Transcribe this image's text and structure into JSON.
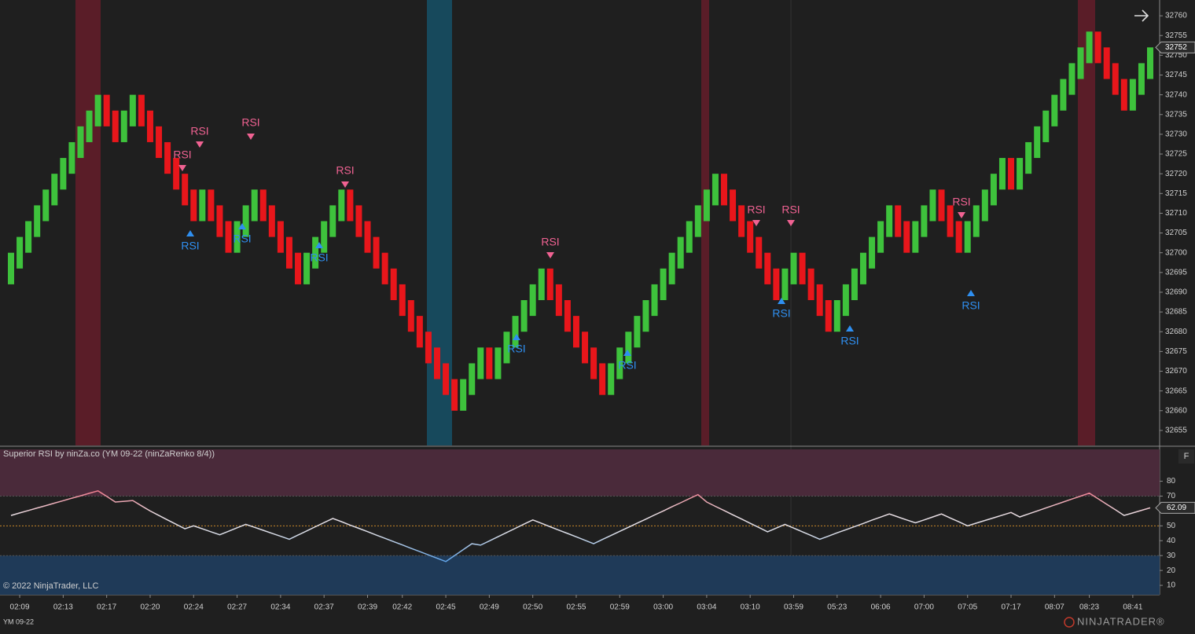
{
  "header": {
    "indicator_title": "Superior RSI by ninZa.co (YM 09-22 (ninZaRenko 8/4))",
    "copyright": "© 2022 NinjaTrader, LLC",
    "instrument": "YM 09-22",
    "logo": "NINJATRADER®",
    "panel_button": "F"
  },
  "chart_data": [
    {
      "type": "candlestick",
      "categories": [
        null,
        "02:09",
        null,
        null,
        null,
        null,
        "02:13",
        null,
        null,
        null,
        null,
        "02:17",
        null,
        null,
        null,
        null,
        "02:20",
        null,
        null,
        null,
        null,
        "02:24",
        null,
        null,
        null,
        null,
        "02:27",
        null,
        null,
        null,
        null,
        "02:34",
        null,
        null,
        null,
        null,
        "02:37",
        null,
        null,
        null,
        null,
        "02:39",
        null,
        null,
        null,
        "02:42",
        null,
        null,
        null,
        null,
        "02:45",
        null,
        null,
        null,
        null,
        "02:49",
        null,
        null,
        null,
        null,
        "02:50",
        null,
        null,
        null,
        null,
        "02:55",
        null,
        null,
        null,
        null,
        "02:59",
        null,
        null,
        null,
        null,
        "03:00",
        null,
        null,
        null,
        null,
        "03:04",
        null,
        null,
        null,
        null,
        "03:10",
        null,
        null,
        null,
        null,
        "03:59",
        null,
        null,
        null,
        null,
        "05:23",
        null,
        null,
        null,
        null,
        "06:06",
        null,
        null,
        null,
        null,
        "07:00",
        null,
        null,
        null,
        null,
        "07:05",
        null,
        null,
        null,
        null,
        "07:17",
        null,
        null,
        null,
        null,
        "08:07",
        null,
        null,
        null,
        "08:23",
        null,
        null,
        null,
        null,
        "08:41",
        null,
        null
      ],
      "open": [
        32692,
        32696,
        32700,
        32704,
        32708,
        32712,
        32716,
        32720,
        32724,
        32728,
        32732,
        32740,
        32736,
        32728,
        32732,
        32740,
        32736,
        32732,
        32728,
        32724,
        32720,
        32716,
        32708,
        32716,
        32712,
        32708,
        32700,
        32704,
        32708,
        32716,
        32712,
        32708,
        32704,
        32700,
        32692,
        32696,
        32700,
        32704,
        32708,
        32716,
        32712,
        32708,
        32704,
        32700,
        32696,
        32692,
        32688,
        32684,
        32680,
        32676,
        32672,
        32668,
        32660,
        32664,
        32668,
        32676,
        32668,
        32672,
        32676,
        32680,
        32684,
        32688,
        32696,
        32692,
        32688,
        32684,
        32680,
        32676,
        32672,
        32664,
        32668,
        32672,
        32676,
        32680,
        32684,
        32688,
        32692,
        32696,
        32700,
        32704,
        32708,
        32712,
        32720,
        32716,
        32712,
        32708,
        32704,
        32700,
        32696,
        32688,
        32692,
        32700,
        32696,
        32692,
        32688,
        32680,
        32684,
        32688,
        32692,
        32696,
        32700,
        32704,
        32712,
        32708,
        32700,
        32704,
        32708,
        32716,
        32712,
        32708,
        32700,
        32704,
        32708,
        32712,
        32716,
        32724,
        32716,
        32720,
        32724,
        32728,
        32732,
        32736,
        32740,
        32744,
        32748,
        32756,
        32752,
        32748,
        32744,
        32736,
        32740,
        32744
      ],
      "close": [
        32700,
        32704,
        32708,
        32712,
        32716,
        32720,
        32724,
        32728,
        32732,
        32736,
        32740,
        32732,
        32728,
        32736,
        32740,
        32732,
        32728,
        32724,
        32720,
        32716,
        32712,
        32708,
        32716,
        32708,
        32704,
        32700,
        32708,
        32712,
        32716,
        32708,
        32704,
        32700,
        32696,
        32692,
        32700,
        32704,
        32708,
        32712,
        32716,
        32708,
        32704,
        32700,
        32696,
        32692,
        32688,
        32684,
        32680,
        32676,
        32672,
        32668,
        32664,
        32660,
        32668,
        32672,
        32676,
        32668,
        32676,
        32680,
        32684,
        32688,
        32692,
        32696,
        32688,
        32684,
        32680,
        32676,
        32672,
        32668,
        32664,
        32672,
        32676,
        32680,
        32684,
        32688,
        32692,
        32696,
        32700,
        32704,
        32708,
        32712,
        32716,
        32720,
        32712,
        32708,
        32704,
        32700,
        32696,
        32692,
        32688,
        32696,
        32700,
        32692,
        32688,
        32684,
        32680,
        32688,
        32692,
        32696,
        32700,
        32704,
        32708,
        32712,
        32704,
        32700,
        32708,
        32712,
        32716,
        32708,
        32704,
        32700,
        32708,
        32712,
        32716,
        32720,
        32724,
        32716,
        32724,
        32728,
        32732,
        32736,
        32740,
        32744,
        32748,
        32752,
        32756,
        32748,
        32744,
        32740,
        32736,
        32744,
        32748,
        32752
      ],
      "up_color": "#3ec23c",
      "down_color": "#e8161b",
      "ylim": [
        32651.2,
        32764
      ],
      "yticks": [
        32655,
        32660,
        32665,
        32670,
        32675,
        32680,
        32685,
        32690,
        32695,
        32700,
        32705,
        32710,
        32715,
        32720,
        32725,
        32730,
        32735,
        32740,
        32745,
        32750,
        32755,
        32760
      ],
      "last_price": 32752,
      "signals": [
        {
          "label": "RSI",
          "side": "sell"
        },
        {
          "label": "RSI",
          "side": "sell"
        },
        {
          "label": "RSI",
          "side": "sell"
        },
        {
          "label": "RSI",
          "side": "sell"
        },
        {
          "label": "RSI",
          "side": "sell"
        },
        {
          "label": "RSI",
          "side": "sell"
        },
        {
          "label": "RSI",
          "side": "sell"
        },
        {
          "label": "RSI",
          "side": "sell"
        },
        {
          "label": "RSI",
          "side": "buy"
        },
        {
          "label": "RSI",
          "side": "buy"
        },
        {
          "label": "RSI",
          "side": "buy"
        },
        {
          "label": "RSI",
          "side": "buy"
        },
        {
          "label": "RSI",
          "side": "buy"
        },
        {
          "label": "RSI",
          "side": "buy"
        },
        {
          "label": "RSI",
          "side": "buy"
        },
        {
          "label": "RSI",
          "side": "buy"
        }
      ],
      "sell_color": "#f06292",
      "buy_color": "#2f8ff0"
    },
    {
      "type": "line",
      "values": [
        57,
        58.7,
        60.3,
        62,
        63.6,
        65.3,
        66.9,
        68.6,
        70.2,
        71.9,
        73.5,
        69.8,
        66,
        66.5,
        67,
        63.5,
        60,
        57,
        54,
        51,
        48,
        50,
        48,
        46,
        44,
        46.3,
        48.7,
        51,
        49,
        47,
        45,
        43,
        41,
        43.8,
        46.6,
        49.4,
        52.2,
        55,
        52.8,
        50.5,
        48.3,
        46.1,
        43.8,
        41.6,
        39.4,
        37.2,
        34.9,
        32.7,
        30.5,
        28.2,
        26,
        30,
        34,
        38,
        37,
        39.8,
        42.7,
        45.5,
        48.3,
        51.2,
        54,
        51.7,
        49.4,
        47.1,
        44.9,
        42.6,
        40.3,
        38,
        40.8,
        43.5,
        46.3,
        49,
        51.8,
        54.5,
        57.3,
        60,
        62.8,
        65.5,
        68.3,
        71,
        66,
        63.1,
        60.3,
        57.4,
        54.6,
        51.7,
        48.9,
        46,
        48.5,
        51,
        48.5,
        46,
        43.5,
        41,
        43.1,
        45.3,
        47.4,
        49.5,
        51.6,
        53.8,
        55.9,
        58,
        56,
        54,
        52,
        54,
        56,
        58,
        55.3,
        52.7,
        50,
        51.8,
        53.6,
        55.4,
        57.2,
        59,
        56,
        58,
        60,
        62,
        64,
        66,
        68,
        70,
        72,
        68.3,
        64.5,
        60.8,
        57,
        58.7,
        60.4,
        62.09
      ],
      "ylim": [
        3.7,
        101.4
      ],
      "yticks": [
        10,
        20,
        30,
        40,
        50,
        60,
        70,
        80
      ],
      "levels": [
        70,
        50,
        30
      ],
      "last_value": 62.09
    }
  ]
}
